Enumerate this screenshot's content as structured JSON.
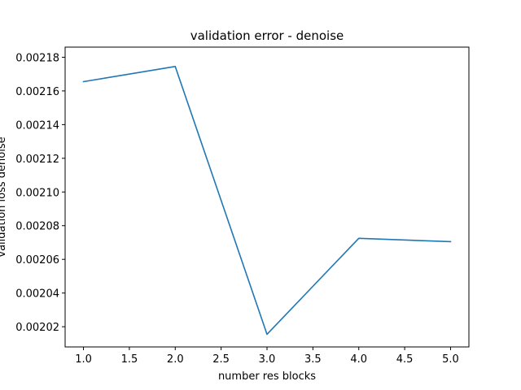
{
  "chart_data": {
    "type": "line",
    "title": "validation error - denoise",
    "xlabel": "number res blocks",
    "ylabel": "validation loss denoise",
    "xlim": [
      0.8,
      5.2
    ],
    "ylim": [
      0.002008,
      0.002186
    ],
    "x_ticks": [
      "1.0",
      "1.5",
      "2.0",
      "2.5",
      "3.0",
      "3.5",
      "4.0",
      "4.5",
      "5.0"
    ],
    "y_ticks": [
      "0.00202",
      "0.00204",
      "0.00206",
      "0.00208",
      "0.00210",
      "0.00212",
      "0.00214",
      "0.00216",
      "0.00218"
    ],
    "grid": false,
    "series": [
      {
        "color": "#1f77b4",
        "x": [
          1,
          2,
          3,
          4,
          5
        ],
        "y": [
          0.0021655,
          0.0021745,
          0.0020155,
          0.0020725,
          0.0020705
        ]
      }
    ]
  }
}
